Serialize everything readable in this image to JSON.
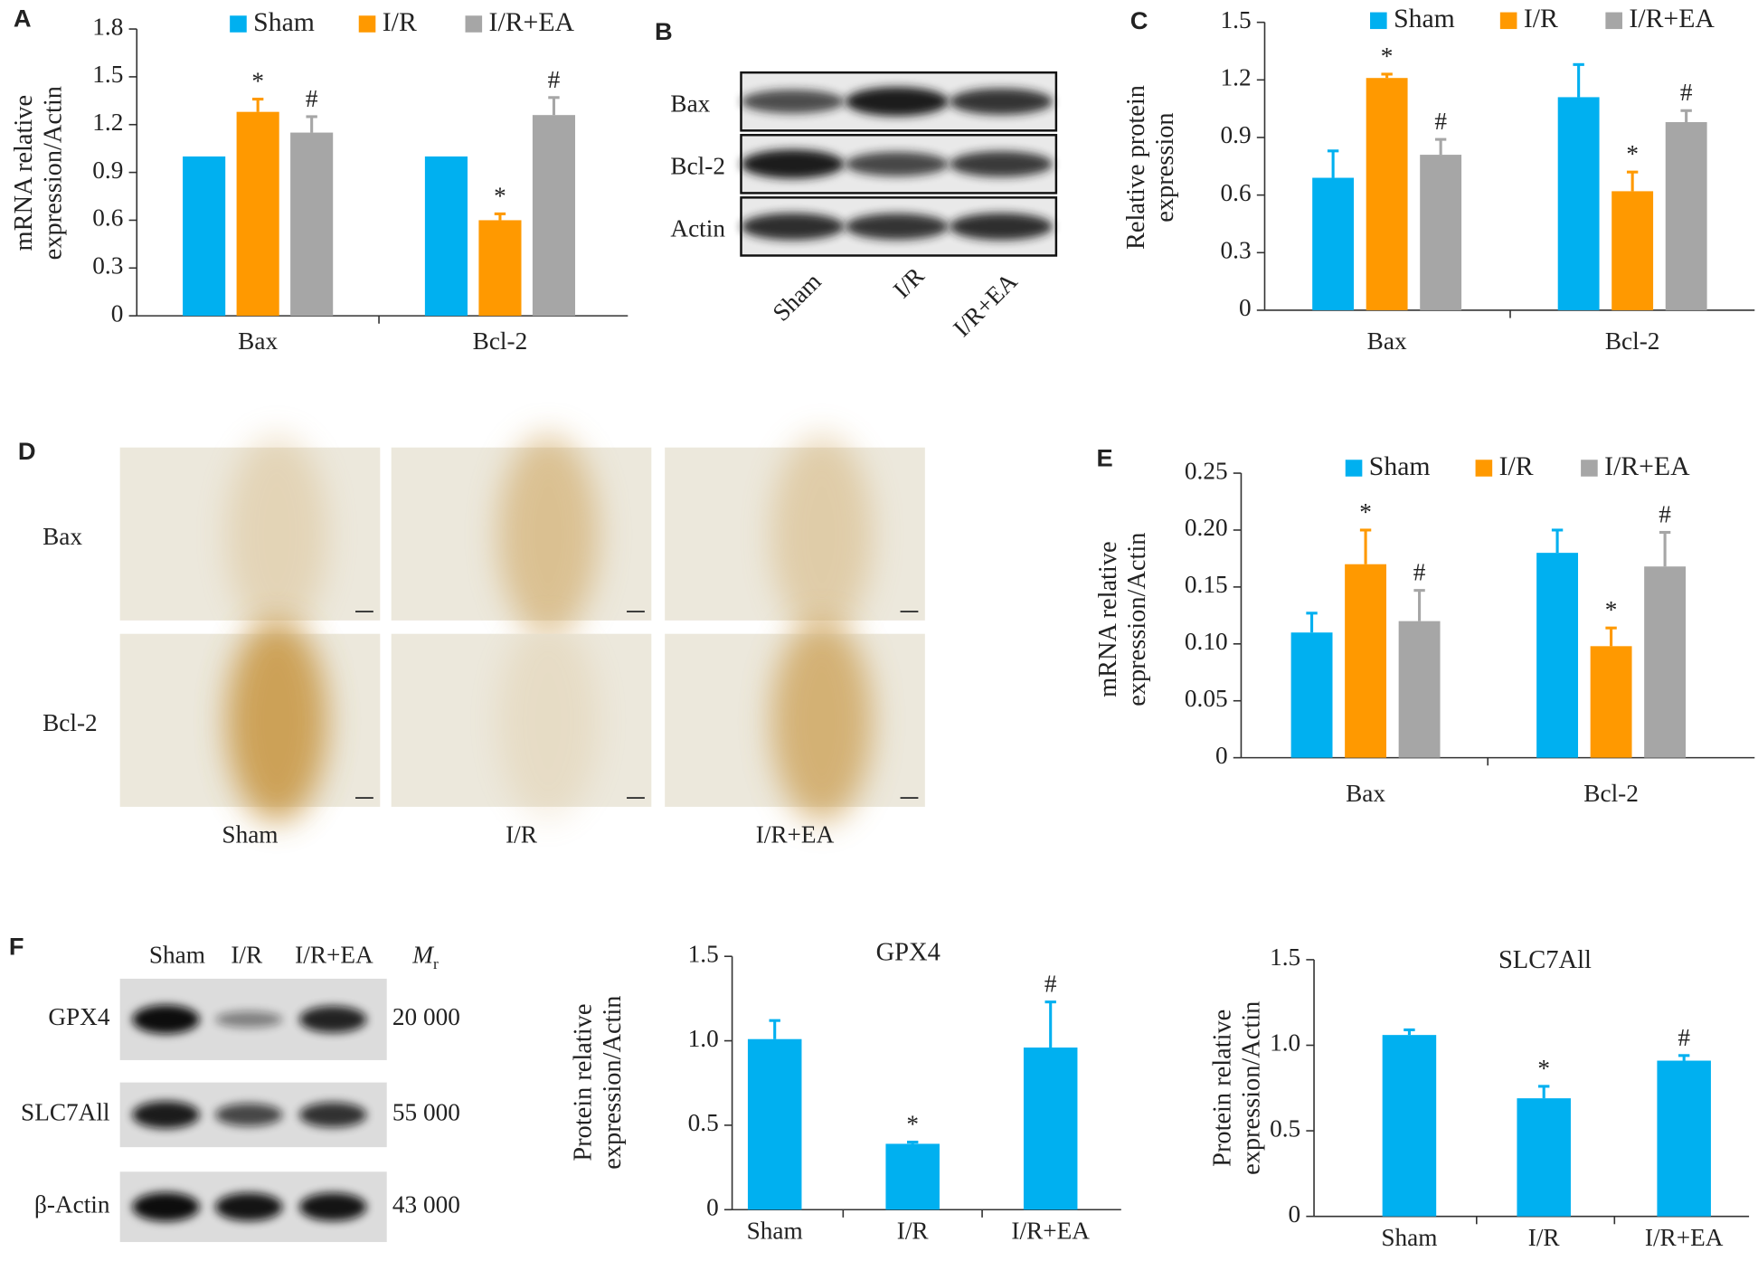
{
  "chart_data": [
    {
      "type": "bar",
      "panel": "A",
      "ylabel": [
        "mRNA relative",
        "expression/Actin"
      ],
      "categories": [
        "Bax",
        "Bcl-2"
      ],
      "series": [
        {
          "name": "Sham",
          "color": "#00b0f0",
          "values": [
            1.0,
            1.0
          ]
        },
        {
          "name": "I/R",
          "color": "#ff9900",
          "values": [
            1.28,
            0.6
          ],
          "errors": [
            0.08,
            0.04
          ],
          "annotations": [
            "*",
            "*"
          ]
        },
        {
          "name": "I/R+EA",
          "color": "#a6a6a6",
          "values": [
            1.15,
            1.26
          ],
          "errors": [
            0.1,
            0.11
          ],
          "annotations": [
            "#",
            "#"
          ]
        }
      ],
      "ylim": [
        0,
        1.8
      ],
      "yticks": [
        0,
        0.3,
        0.6,
        0.9,
        1.2,
        1.5,
        1.8
      ]
    },
    {
      "type": "bar",
      "panel": "C",
      "ylabel": [
        "Relative protein",
        "expression"
      ],
      "categories": [
        "Bax",
        "Bcl-2"
      ],
      "series": [
        {
          "name": "Sham",
          "color": "#00b0f0",
          "values": [
            0.69,
            1.11
          ],
          "errors": [
            0.14,
            0.17
          ]
        },
        {
          "name": "I/R",
          "color": "#ff9900",
          "values": [
            1.21,
            0.62
          ],
          "errors": [
            0.02,
            0.1
          ],
          "annotations": [
            "*",
            "*"
          ]
        },
        {
          "name": "I/R+EA",
          "color": "#a6a6a6",
          "values": [
            0.81,
            0.98
          ],
          "errors": [
            0.08,
            0.06
          ],
          "annotations": [
            "#",
            "#"
          ]
        }
      ],
      "ylim": [
        0,
        1.5
      ],
      "yticks": [
        0,
        0.3,
        0.6,
        0.9,
        1.2,
        1.5
      ]
    },
    {
      "type": "bar",
      "panel": "E",
      "ylabel": [
        "mRNA relative",
        "expression/Actin"
      ],
      "categories": [
        "Bax",
        "Bcl-2"
      ],
      "series": [
        {
          "name": "Sham",
          "color": "#00b0f0",
          "values": [
            0.11,
            0.18
          ],
          "errors": [
            0.017,
            0.02
          ]
        },
        {
          "name": "I/R",
          "color": "#ff9900",
          "values": [
            0.17,
            0.098
          ],
          "errors": [
            0.03,
            0.016
          ],
          "annotations": [
            "*",
            "*"
          ]
        },
        {
          "name": "I/R+EA",
          "color": "#a6a6a6",
          "values": [
            0.12,
            0.168
          ],
          "errors": [
            0.027,
            0.03
          ],
          "annotations": [
            "#",
            "#"
          ]
        }
      ],
      "ylim": [
        0,
        0.25
      ],
      "yticks": [
        0,
        0.05,
        {
          "value": 0.1,
          "label": "0.10"
        },
        0.15,
        {
          "value": 0.2,
          "label": "0.20"
        },
        0.25
      ]
    },
    {
      "type": "bar",
      "title": "GPX4",
      "ylabel": [
        "Protein relative",
        "expression/Actin"
      ],
      "categories": [
        "Sham",
        "I/R",
        "I/R+EA"
      ],
      "values": [
        1.01,
        0.39,
        0.96
      ],
      "errors": [
        0.11,
        0.01,
        0.27
      ],
      "annotations": [
        null,
        "*",
        "#"
      ],
      "color": "#00b0f0",
      "ylim": [
        0,
        1.5
      ],
      "yticks": [
        0,
        0.5,
        {
          "value": 1,
          "label": "1.0"
        },
        1.5
      ]
    },
    {
      "type": "bar",
      "title": "SLC7All",
      "ylabel": [
        "Protein relative",
        "expression/Actin"
      ],
      "categories": [
        "Sham",
        "I/R",
        "I/R+EA"
      ],
      "values": [
        1.06,
        0.69,
        0.91
      ],
      "errors": [
        0.03,
        0.07,
        0.03
      ],
      "annotations": [
        null,
        "*",
        "#"
      ],
      "color": "#00b0f0",
      "ylim": [
        0,
        1.5
      ],
      "yticks": [
        0,
        0.5,
        {
          "value": 1,
          "label": "1.0"
        },
        1.5
      ]
    }
  ],
  "blot_B": {
    "panel": "B",
    "rows": [
      "Bax",
      "Bcl-2",
      "Actin"
    ],
    "lanes": [
      "Sham",
      "I/R",
      "I/R+EA"
    ]
  },
  "ihc_D": {
    "panel": "D",
    "rows": [
      "Bax",
      "Bcl-2"
    ],
    "columns": [
      "Sham",
      "I/R",
      "I/R+EA"
    ]
  },
  "blot_F": {
    "panel": "F",
    "lanes": [
      "Sham",
      "I/R",
      "I/R+EA"
    ],
    "mr": {
      "symbol": "M",
      "subscript": "r"
    },
    "rows": [
      {
        "name": "GPX4",
        "weight": "20 000"
      },
      {
        "name": "SLC7All",
        "weight": "55 000"
      },
      {
        "name": "β-Actin",
        "weight": "43 000"
      }
    ]
  }
}
